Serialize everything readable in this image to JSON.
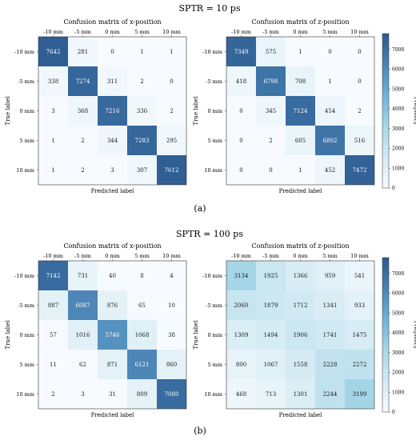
{
  "figure": {
    "panels": [
      {
        "header": "SPTR = 10 ps",
        "caption": "(a)"
      },
      {
        "header": "SPTR = 100 ps",
        "caption": "(b)"
      }
    ]
  },
  "chart_data": [
    {
      "type": "heatmap",
      "title": "Confusion matrix of x-position",
      "xlabel": "Predicted label",
      "ylabel": "True label",
      "categories": [
        "-10 mm",
        "-5 mm",
        "0 mm",
        "5 mm",
        "10 mm"
      ],
      "values": [
        [
          7642,
          281,
          0,
          1,
          1
        ],
        [
          338,
          7274,
          311,
          2,
          0
        ],
        [
          3,
          368,
          7216,
          336,
          2
        ],
        [
          1,
          2,
          344,
          7283,
          295
        ],
        [
          1,
          2,
          3,
          307,
          7612
        ]
      ],
      "colorbar": null
    },
    {
      "type": "heatmap",
      "title": "Confusion matrix of z-position",
      "xlabel": "Predicted label",
      "ylabel": "True label",
      "categories": [
        "-10 mm",
        "-5 mm",
        "0 mm",
        "5 mm",
        "10 mm"
      ],
      "values": [
        [
          7349,
          575,
          1,
          0,
          0
        ],
        [
          418,
          6798,
          708,
          1,
          0
        ],
        [
          0,
          345,
          7124,
          454,
          2
        ],
        [
          0,
          2,
          605,
          6802,
          516
        ],
        [
          0,
          0,
          1,
          452,
          7472
        ]
      ],
      "colorbar": {
        "label": "Frequency",
        "ticks": [
          0,
          1000,
          2000,
          3000,
          4000,
          5000,
          6000,
          7000
        ],
        "range": [
          0,
          7800
        ]
      }
    },
    {
      "type": "heatmap",
      "title": "Confusion matrix of x-position",
      "xlabel": "Predicted label",
      "ylabel": "True label",
      "categories": [
        "-10 mm",
        "-5 mm",
        "0 mm",
        "5 mm",
        "10 mm"
      ],
      "values": [
        [
          7142,
          731,
          40,
          8,
          4
        ],
        [
          887,
          6087,
          876,
          65,
          10
        ],
        [
          57,
          1016,
          5746,
          1068,
          38
        ],
        [
          11,
          62,
          871,
          6121,
          860
        ],
        [
          2,
          3,
          31,
          809,
          7080
        ]
      ],
      "colorbar": null
    },
    {
      "type": "heatmap",
      "title": "Confusion matrix of z-position",
      "xlabel": "Predicted label",
      "ylabel": "True label",
      "categories": [
        "-10 mm",
        "-5 mm",
        "0 mm",
        "5 mm",
        "10 mm"
      ],
      "values": [
        [
          3134,
          1925,
          1366,
          959,
          541
        ],
        [
          2060,
          1879,
          1712,
          1341,
          933
        ],
        [
          1309,
          1494,
          1906,
          1741,
          1475
        ],
        [
          800,
          1067,
          1558,
          2228,
          2272
        ],
        [
          468,
          713,
          1301,
          2244,
          3199
        ]
      ],
      "colorbar": {
        "label": "Frequency",
        "ticks": [
          0,
          1000,
          2000,
          3000,
          4000,
          5000,
          6000,
          7000
        ],
        "range": [
          0,
          7800
        ]
      }
    }
  ],
  "colors": {
    "scale": [
      "#f7fbff",
      "#d5ebf3",
      "#a6d7e8",
      "#6eb3d6",
      "#4a82b4",
      "#2b5a8f"
    ],
    "text_dark": "#1a1a1a",
    "text_light": "#ffffff",
    "axis": "#333333"
  }
}
